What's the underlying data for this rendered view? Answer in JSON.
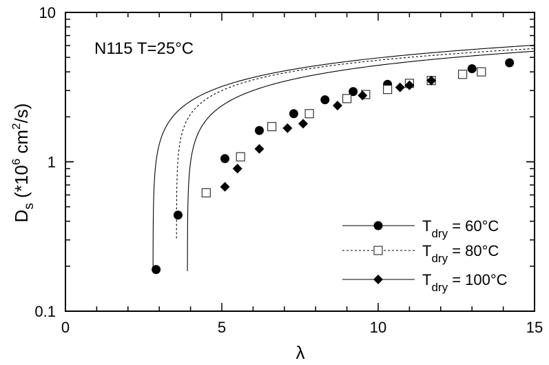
{
  "chart_data": {
    "type": "scatter",
    "title": "",
    "annotation": "N115 T=25°C",
    "xlabel": "λ",
    "ylabel": {
      "main": "D",
      "sub": "s",
      "pre": " (*10",
      "sup": "6",
      "mid": " cm",
      "sup2": "2",
      "post": "/s)"
    },
    "xlim": [
      0,
      15
    ],
    "ylim": [
      0.1,
      10
    ],
    "yscale": "log",
    "x_ticks": [
      0,
      5,
      10,
      15
    ],
    "x_tick_labels": [
      "0",
      "5",
      "10",
      "15"
    ],
    "y_ticks": [
      0.1,
      1,
      10
    ],
    "y_tick_labels": [
      "0.1",
      "1",
      "10"
    ],
    "legend_position": "bottom-right",
    "series": [
      {
        "label": {
          "main": "T",
          "sub": "dry",
          "rest": " = 60°C"
        },
        "marker": "circle-filled",
        "line": "solid",
        "x": [
          2.9,
          3.6,
          5.1,
          6.2,
          7.3,
          8.3,
          9.2,
          10.3,
          13.0,
          14.2
        ],
        "y": [
          0.19,
          0.44,
          1.05,
          1.62,
          2.1,
          2.6,
          2.95,
          3.3,
          4.2,
          4.6
        ],
        "fit": {
          "lambda0": 2.8,
          "A": 2.38,
          "p": 0.372
        }
      },
      {
        "label": {
          "main": "T",
          "sub": "dry",
          "rest": " = 80°C"
        },
        "marker": "square-open",
        "line": "dashed",
        "x": [
          4.5,
          5.6,
          6.6,
          7.8,
          9.0,
          9.6,
          10.3,
          11.0,
          11.7,
          12.7,
          13.3
        ],
        "y": [
          0.62,
          1.08,
          1.72,
          2.1,
          2.65,
          2.82,
          3.05,
          3.35,
          3.5,
          3.85,
          4.0
        ],
        "fit": {
          "lambda0": 3.55,
          "A": 2.67,
          "p": 0.313
        }
      },
      {
        "label": {
          "main": "T",
          "sub": "dry",
          "rest": " = 100°C"
        },
        "marker": "diamond-filled",
        "line": "solid",
        "x": [
          5.1,
          5.5,
          6.2,
          7.1,
          7.6,
          8.7,
          9.5,
          10.7,
          11.0,
          11.7
        ],
        "y": [
          0.68,
          0.9,
          1.22,
          1.68,
          1.8,
          2.38,
          2.78,
          3.15,
          3.25,
          3.5
        ],
        "fit": {
          "lambda0": 3.9,
          "A": 2.29,
          "p": 0.364
        }
      }
    ]
  }
}
